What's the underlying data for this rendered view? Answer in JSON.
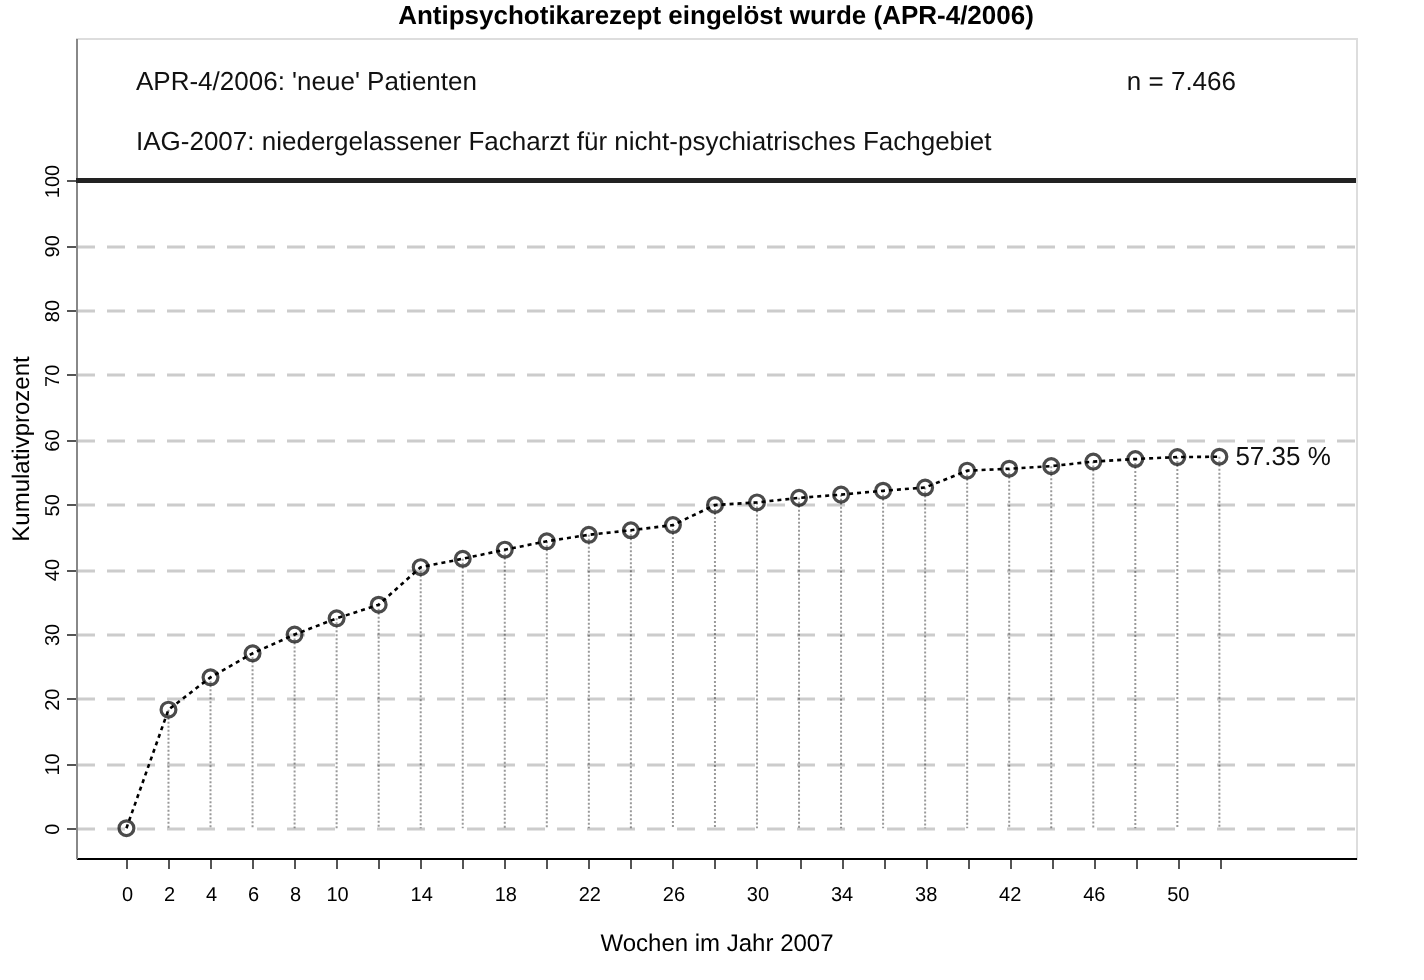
{
  "chart_data": {
    "type": "line",
    "title": "Antipsychotikarezept eingelöst wurde (APR-4/2006)",
    "xlabel": "Wochen im Jahr 2007",
    "ylabel": "Kumulativprozent",
    "x": [
      0,
      2,
      4,
      6,
      8,
      10,
      12,
      14,
      16,
      18,
      20,
      22,
      24,
      26,
      28,
      30,
      32,
      34,
      36,
      38,
      40,
      42,
      44,
      46,
      48,
      50,
      52
    ],
    "series": [
      {
        "type": "lollipop",
        "color": "#000000",
        "values": [
          0,
          18.3,
          23.3,
          27.0,
          29.9,
          32.4,
          34.5,
          40.3,
          41.6,
          43.0,
          44.3,
          45.3,
          46.0,
          46.8,
          49.9,
          50.3,
          51.0,
          51.5,
          52.1,
          52.6,
          55.2,
          55.5,
          55.9,
          56.6,
          57.0,
          57.3,
          57.35
        ]
      },
      {
        "marker": "none",
        "color": "#000000",
        "values": [
          0,
          18.3,
          23.3,
          27.0,
          29.9,
          32.4,
          34.5,
          40.3,
          41.6,
          43.0,
          44.3,
          45.3,
          46.0,
          46.8,
          49.9,
          50.3,
          51.0,
          51.5,
          52.1,
          52.6,
          55.2,
          55.5,
          55.9,
          56.6,
          57.0,
          57.3,
          57.35
        ]
      }
    ],
    "xlim": [
      -2.4,
      58.5
    ],
    "ylim": [
      -4.6,
      122
    ],
    "xticks": [
      0,
      2,
      4,
      6,
      8,
      10,
      {
        "value": 12,
        "label": null
      },
      14,
      {
        "value": 16,
        "label": null
      },
      18,
      {
        "value": 20,
        "label": null
      },
      22,
      {
        "value": 24,
        "label": null
      },
      26,
      {
        "value": 28,
        "label": null
      },
      30,
      {
        "value": 32,
        "label": null
      },
      34,
      {
        "value": 36,
        "label": null
      },
      38,
      {
        "value": 40,
        "label": null
      },
      42,
      {
        "value": 44,
        "label": null
      },
      46,
      {
        "value": 48,
        "label": null
      },
      50,
      {
        "value": 52,
        "label": null
      }
    ],
    "yticks": [
      0,
      10,
      20,
      30,
      40,
      50,
      60,
      70,
      80,
      90,
      100
    ],
    "ref_lines": [
      {
        "axis": "y",
        "value": 100,
        "color": "#222222"
      }
    ],
    "annotations": [
      "APR-4/2006: 'neue' Patienten",
      "n = 7.466",
      "IAG-2007: niedergelassener Facharzt für nicht-psychiatrisches Fachgebiet",
      {
        "text": "57.35 %",
        "x": 52,
        "y": 57.35
      }
    ],
    "grid": "y",
    "marker": "circle",
    "line_style": "dotted"
  }
}
